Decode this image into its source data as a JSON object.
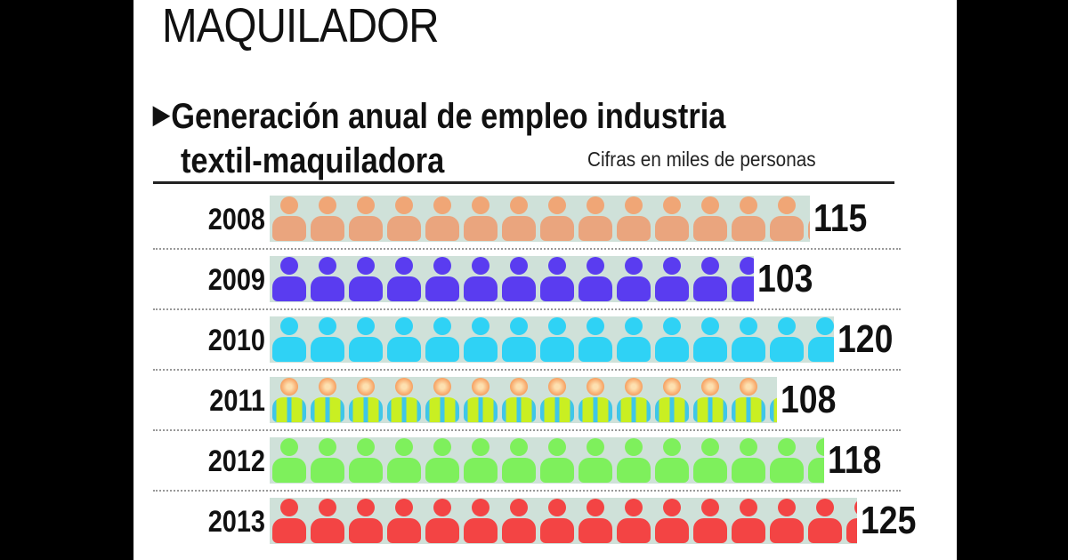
{
  "title": "MAQUILADOR",
  "chart_data": {
    "type": "bar",
    "title": "Generación anual de empleo industria textil-maquiladora",
    "title_line1": "Generación anual de empleo industria",
    "title_line2": "textil-maquiladora",
    "units_note": "Cifras en miles de personas",
    "categories": [
      "2008",
      "2009",
      "2010",
      "2011",
      "2012",
      "2013"
    ],
    "values": [
      115,
      103,
      120,
      108,
      118,
      125
    ],
    "value_labels": [
      "115",
      "103",
      "120",
      "108",
      "118",
      "125"
    ],
    "colors": [
      {
        "head": "#f0a676",
        "body": "#eaa57e",
        "stripe": ""
      },
      {
        "head": "#5a3cf0",
        "body": "#5a3cf0",
        "stripe": ""
      },
      {
        "head": "#2fd2f5",
        "body": "#2fd2f5",
        "stripe": ""
      },
      {
        "head": "#f7a060",
        "body": "#c9ef22",
        "stripe": "#3fc6e8"
      },
      {
        "head": "#7ef05c",
        "body": "#7ef05c",
        "stripe": ""
      },
      {
        "head": "#f34444",
        "body": "#f34444",
        "stripe": ""
      }
    ],
    "ylabel": "miles de personas",
    "xlim": [
      0,
      130
    ]
  }
}
